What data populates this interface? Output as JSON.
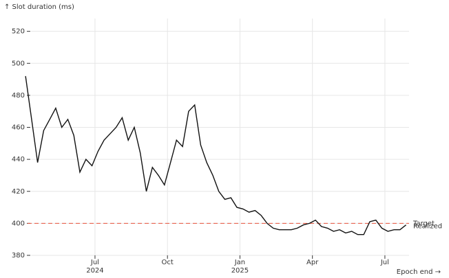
{
  "chart_data": {
    "type": "line",
    "y_label": "↑ Slot duration (ms)",
    "x_label": "Epoch end →",
    "x": [
      "2024-04",
      "2024-04",
      "2024-04",
      "2024-04",
      "2024-05",
      "2024-05",
      "2024-05",
      "2024-05",
      "2024-06",
      "2024-06",
      "2024-06",
      "2024-06",
      "2024-07",
      "2024-07",
      "2024-07",
      "2024-07",
      "2024-08",
      "2024-08",
      "2024-08",
      "2024-08",
      "2024-09",
      "2024-09",
      "2024-09",
      "2024-09",
      "2024-10",
      "2024-10",
      "2024-10",
      "2024-10",
      "2024-11",
      "2024-11",
      "2024-11",
      "2024-11",
      "2024-12",
      "2024-12",
      "2024-12",
      "2024-12",
      "2025-01",
      "2025-01",
      "2025-01",
      "2025-01",
      "2025-02",
      "2025-02",
      "2025-02",
      "2025-02",
      "2025-03",
      "2025-03",
      "2025-03",
      "2025-03",
      "2025-04",
      "2025-04",
      "2025-04",
      "2025-04",
      "2025-05",
      "2025-05",
      "2025-05",
      "2025-05",
      "2025-06",
      "2025-06",
      "2025-06",
      "2025-06",
      "2025-07",
      "2025-07",
      "2025-07",
      "2025-07"
    ],
    "series": [
      {
        "name": "Realized",
        "color": "#111111",
        "values": [
          492,
          465,
          438,
          458,
          465,
          472,
          460,
          465,
          455,
          432,
          440,
          436,
          445,
          452,
          456,
          460,
          466,
          452,
          460,
          444,
          420,
          435,
          430,
          424,
          438,
          452,
          448,
          470,
          474,
          449,
          438,
          430,
          420,
          415,
          416,
          410,
          409,
          407,
          408,
          405,
          400,
          397,
          396,
          396,
          396,
          397,
          399,
          400,
          402,
          398,
          397,
          395,
          396,
          394,
          395,
          393,
          393,
          401,
          402,
          397,
          395,
          396,
          396,
          399
        ]
      }
    ],
    "reference_line": {
      "name": "Target",
      "value": 400,
      "color": "#e8513a"
    },
    "xlim": [
      "2024-04",
      "2025-08"
    ],
    "xticks": [
      {
        "value": "2024-07",
        "label": "Jul\n2024"
      },
      {
        "value": "2024-10",
        "label": "Oct"
      },
      {
        "value": "2025-01",
        "label": "Jan\n2025"
      },
      {
        "value": "2025-04",
        "label": "Apr"
      },
      {
        "value": "2025-07",
        "label": "Jul"
      }
    ],
    "ylim": [
      380,
      528
    ],
    "yticks": [
      380,
      400,
      420,
      440,
      460,
      480,
      500,
      520
    ],
    "grid": true
  }
}
